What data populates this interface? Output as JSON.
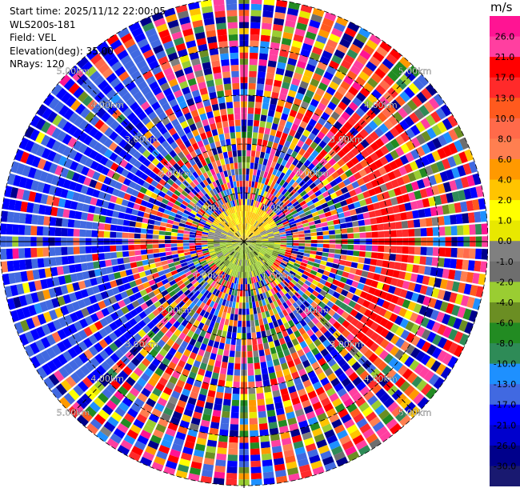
{
  "header": {
    "start_time": "Start time: 2025/11/12 22:00:05",
    "instrument": "WLS200s-181",
    "field": "Field: VEL",
    "elevation": "Elevation(deg): 35.00",
    "nrays": "NRays: 120"
  },
  "colorbar": {
    "unit": "m/s",
    "labels": [
      "26.0",
      "21.0",
      "17.0",
      "13.0",
      "10.0",
      "8.0",
      "6.0",
      "4.0",
      "2.0",
      "1.0",
      "0.0",
      "-1.0",
      "-2.0",
      "-4.0",
      "-6.0",
      "-8.0",
      "-10.0",
      "-13.0",
      "-17.0",
      "-21.0",
      "-26.0",
      "-30.0"
    ],
    "colors": [
      "#ff1493",
      "#ff3fa0",
      "#ff0000",
      "#ff2a2a",
      "#ff5a1e",
      "#ff6a4a",
      "#ff7f50",
      "#ff9900",
      "#ffc400",
      "#ffff00",
      "#e8e800",
      "#808080",
      "#6e6e6e",
      "#9acd32",
      "#6b8e23",
      "#228b22",
      "#2e8b57",
      "#1e90ff",
      "#4169e1",
      "#0000ff",
      "#0000cd",
      "#00008b",
      "#191970"
    ]
  },
  "chart_data": {
    "type": "polar-ppi",
    "field": "VEL",
    "units": "m/s",
    "nrays": 120,
    "range_max_km": 5.0,
    "range_ring_labels": [
      "1.00km",
      "2.00km",
      "3.00km",
      "4.00km",
      "5.00km"
    ],
    "vmin": -30.0,
    "vmax": 26.0
  }
}
